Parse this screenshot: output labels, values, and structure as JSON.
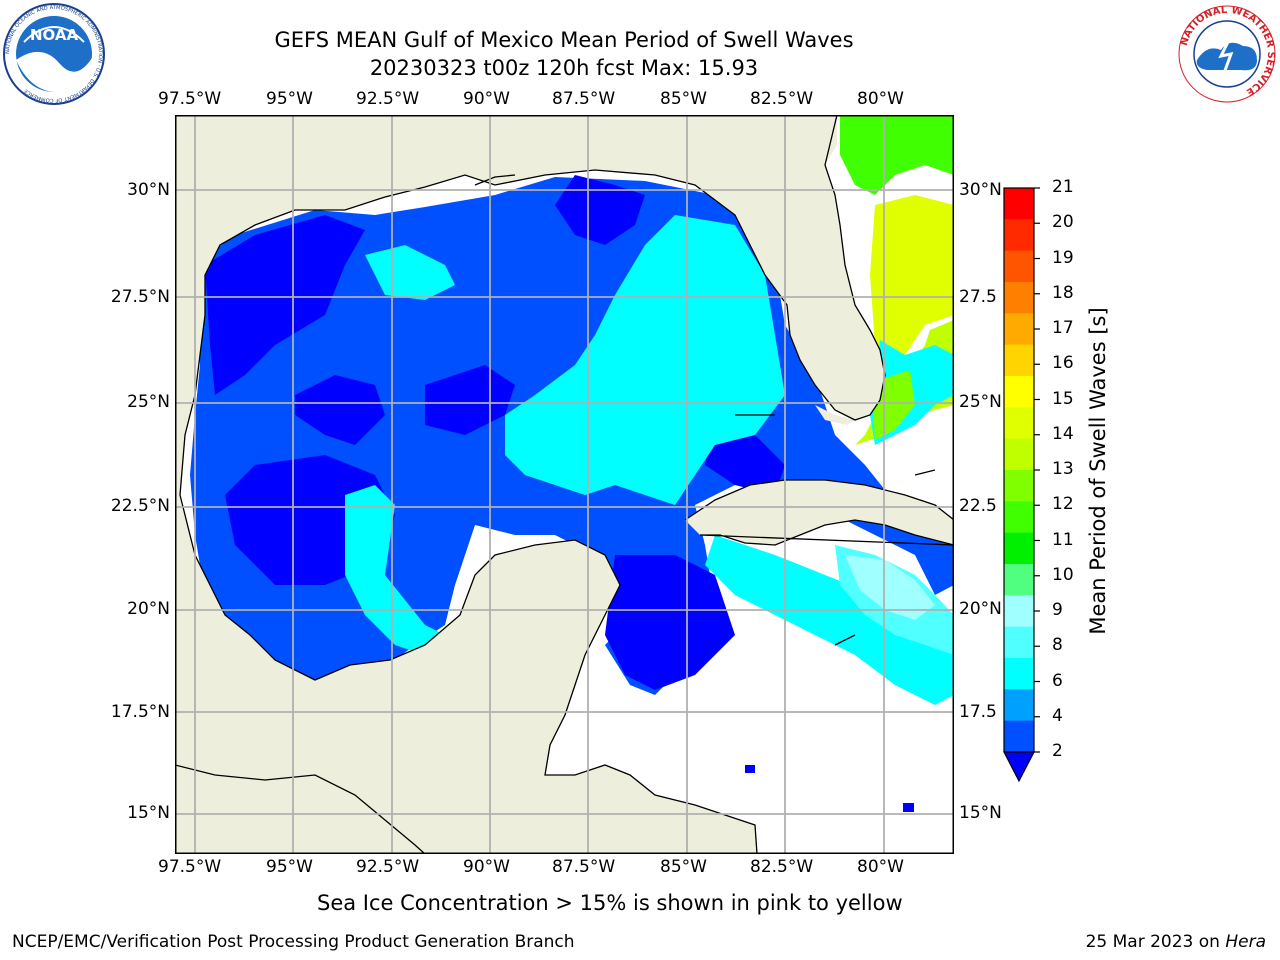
{
  "title": {
    "line1": "GEFS MEAN Gulf of Mexico Mean Period of Swell Waves",
    "line2": "20230323 t00z 120h fcst   Max: 15.93"
  },
  "logos": {
    "left": {
      "text": "NOAA",
      "ring_text": "NATIONAL OCEANIC AND ATMOSPHERIC ADMINISTRATION · U.S. DEPARTMENT OF COMMERCE"
    },
    "right": {
      "ring_text": "NATIONAL WEATHER SERVICE"
    }
  },
  "axes": {
    "lon_labels": [
      "97.5°W",
      "95°W",
      "92.5°W",
      "90°W",
      "87.5°W",
      "85°W",
      "82.5°W",
      "80°W"
    ],
    "lat_labels": [
      "30°N",
      "27.5°N",
      "25°N",
      "22.5°N",
      "20°N",
      "17.5°N",
      "15°N"
    ],
    "lat_labels_right": [
      "30°N",
      "27.5",
      "25°N",
      "22.5",
      "20°N",
      "17.5",
      "15°N"
    ]
  },
  "colorbar": {
    "title": "Mean Period of Swell Waves [s]",
    "ticks": [
      "21",
      "20",
      "19",
      "18",
      "17",
      "16",
      "15",
      "14",
      "13",
      "12",
      "11",
      "10",
      "9",
      "8",
      "6",
      "4",
      "2"
    ],
    "colors": [
      "#ff0000",
      "#ff2a00",
      "#ff5500",
      "#ff8000",
      "#ffaa00",
      "#ffd400",
      "#ffff00",
      "#e0ff00",
      "#c0ff00",
      "#80ff00",
      "#40ff00",
      "#00f000",
      "#50ff80",
      "#a0ffff",
      "#50ffff",
      "#00ffff",
      "#00a0ff",
      "#0050ff"
    ]
  },
  "note": "Sea Ice Concentration > 15% is shown in pink to yellow",
  "footer": {
    "left": "NCEP/EMC/Verification Post Processing Product Generation Branch",
    "right_prefix": "25 Mar 2023 on ",
    "right_host": "Hera"
  }
}
